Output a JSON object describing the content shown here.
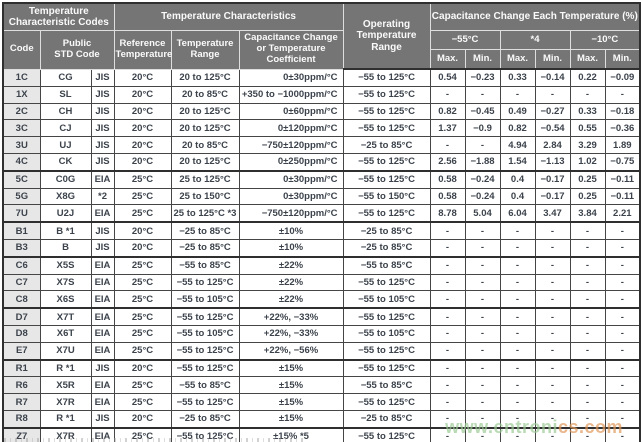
{
  "colors": {
    "header_bg": "#757575",
    "code_column_bg": "#e7e7e7",
    "grid_border": "#454545",
    "outer_border": "#2f2f2f",
    "watermark_green": "#9ccb96",
    "watermark_orange": "#e1995c"
  },
  "header": {
    "group_codes": "Temperature\nCharacteristic Codes",
    "group_characteristics": "Temperature Characteristics",
    "operating": "Operating\nTemperature\nRange",
    "group_cap_change": "Capacitance Change Each Temperature (%)",
    "col_code": "Code",
    "col_public": "Public\nSTD Code",
    "col_ref": "Reference\nTemperature",
    "col_range": "Temperature\nRange",
    "col_coeff": "Capacitance Change\nor Temperature\nCoefficient",
    "temp_minus55": "−55°C",
    "temp_star4": "*4",
    "temp_minus10": "−10°C",
    "max": "Max.",
    "min": "Min."
  },
  "watermark": {
    "text_green": "www.cntroni",
    "text_orange": "cs.com"
  },
  "table": {
    "rows": [
      {
        "code": "1C",
        "public": "CG",
        "std": "JIS",
        "ref": "20°C",
        "range": "20 to 125°C",
        "coeff": "0±30ppm/°C",
        "op": "−55 to 125°C",
        "vals": [
          "0.54",
          "−0.23",
          "0.33",
          "−0.14",
          "0.22",
          "−0.09"
        ]
      },
      {
        "code": "1X",
        "public": "SL",
        "std": "JIS",
        "ref": "20°C",
        "range": "20 to 85°C",
        "coeff": "+350 to −1000ppm/°C",
        "op": "−55 to 125°C",
        "vals": [
          "-",
          "-",
          "-",
          "-",
          "-",
          "-"
        ]
      },
      {
        "code": "2C",
        "public": "CH",
        "std": "JIS",
        "ref": "20°C",
        "range": "20 to 125°C",
        "coeff": "0±60ppm/°C",
        "op": "−55 to 125°C",
        "vals": [
          "0.82",
          "−0.45",
          "0.49",
          "−0.27",
          "0.33",
          "−0.18"
        ]
      },
      {
        "code": "3C",
        "public": "CJ",
        "std": "JIS",
        "ref": "20°C",
        "range": "20 to 125°C",
        "coeff": "0±120ppm/°C",
        "op": "−55 to 125°C",
        "vals": [
          "1.37",
          "−0.9",
          "0.82",
          "−0.54",
          "0.55",
          "−0.36"
        ]
      },
      {
        "code": "3U",
        "public": "UJ",
        "std": "JIS",
        "ref": "20°C",
        "range": "20 to 85°C",
        "coeff": "−750±120ppm/°C",
        "op": "−25 to 85°C",
        "vals": [
          "-",
          "-",
          "4.94",
          "2.84",
          "3.29",
          "1.89"
        ]
      },
      {
        "code": "4C",
        "public": "CK",
        "std": "JIS",
        "ref": "20°C",
        "range": "20 to 125°C",
        "coeff": "0±250ppm/°C",
        "op": "−55 to 125°C",
        "vals": [
          "2.56",
          "−1.88",
          "1.54",
          "−1.13",
          "1.02",
          "−0.75"
        ]
      },
      {
        "code": "5C",
        "public": "C0G",
        "std": "EIA",
        "ref": "25°C",
        "range": "25 to 125°C",
        "coeff": "0±30ppm/°C",
        "op": "−55 to 125°C",
        "group": true,
        "vals": [
          "0.58",
          "−0.24",
          "0.4",
          "−0.17",
          "0.25",
          "−0.11"
        ]
      },
      {
        "code": "5G",
        "public": "X8G",
        "std": "*2",
        "ref": "25°C",
        "range": "25 to 150°C",
        "coeff": "0±30ppm/°C",
        "op": "−55 to 150°C",
        "vals": [
          "0.58",
          "−0.24",
          "0.4",
          "−0.17",
          "0.25",
          "−0.11"
        ]
      },
      {
        "code": "7U",
        "public": "U2J",
        "std": "EIA",
        "ref": "25°C",
        "range": "25 to 125°C *3",
        "coeff": "−750±120ppm/°C",
        "op": "−55 to 125°C",
        "vals": [
          "8.78",
          "5.04",
          "6.04",
          "3.47",
          "3.84",
          "2.21"
        ]
      },
      {
        "code": "B1",
        "public": "B *1",
        "std": "JIS",
        "ref": "20°C",
        "range": "−25 to 85°C",
        "coeff": "±10%",
        "op": "−25 to 85°C",
        "group": true,
        "vals": [
          "-",
          "-",
          "-",
          "-",
          "-",
          "-"
        ]
      },
      {
        "code": "B3",
        "public": "B",
        "std": "JIS",
        "ref": "20°C",
        "range": "−25 to 85°C",
        "coeff": "±10%",
        "op": "−25 to 85°C",
        "vals": [
          "-",
          "-",
          "-",
          "-",
          "-",
          "-"
        ]
      },
      {
        "code": "C6",
        "public": "X5S",
        "std": "EIA",
        "ref": "25°C",
        "range": "−55 to 85°C",
        "coeff": "±22%",
        "op": "−55 to 85°C",
        "group": true,
        "vals": [
          "-",
          "-",
          "-",
          "-",
          "-",
          "-"
        ]
      },
      {
        "code": "C7",
        "public": "X7S",
        "std": "EIA",
        "ref": "25°C",
        "range": "−55 to 125°C",
        "coeff": "±22%",
        "op": "−55 to 125°C",
        "vals": [
          "-",
          "-",
          "-",
          "-",
          "-",
          "-"
        ]
      },
      {
        "code": "C8",
        "public": "X6S",
        "std": "EIA",
        "ref": "25°C",
        "range": "−55 to 105°C",
        "coeff": "±22%",
        "op": "−55 to 105°C",
        "vals": [
          "-",
          "-",
          "-",
          "-",
          "-",
          "-"
        ]
      },
      {
        "code": "D7",
        "public": "X7T",
        "std": "EIA",
        "ref": "25°C",
        "range": "−55 to 125°C",
        "coeff": "+22%, −33%",
        "op": "−55 to 125°C",
        "group": true,
        "vals": [
          "-",
          "-",
          "-",
          "-",
          "-",
          "-"
        ]
      },
      {
        "code": "D8",
        "public": "X6T",
        "std": "EIA",
        "ref": "25°C",
        "range": "−55 to 105°C",
        "coeff": "+22%, −33%",
        "op": "−55 to 105°C",
        "vals": [
          "-",
          "-",
          "-",
          "-",
          "-",
          "-"
        ]
      },
      {
        "code": "E7",
        "public": "X7U",
        "std": "EIA",
        "ref": "25°C",
        "range": "−55 to 125°C",
        "coeff": "+22%, −56%",
        "op": "−55 to 125°C",
        "vals": [
          "-",
          "-",
          "-",
          "-",
          "-",
          "-"
        ]
      },
      {
        "code": "R1",
        "public": "R *1",
        "std": "JIS",
        "ref": "20°C",
        "range": "−55 to 125°C",
        "coeff": "±15%",
        "op": "−55 to 125°C",
        "group": true,
        "vals": [
          "-",
          "-",
          "-",
          "-",
          "-",
          "-"
        ]
      },
      {
        "code": "R6",
        "public": "X5R",
        "std": "EIA",
        "ref": "25°C",
        "range": "−55 to 85°C",
        "coeff": "±15%",
        "op": "−55 to 85°C",
        "vals": [
          "-",
          "-",
          "-",
          "-",
          "-",
          "-"
        ]
      },
      {
        "code": "R7",
        "public": "X7R",
        "std": "EIA",
        "ref": "25°C",
        "range": "−55 to 125°C",
        "coeff": "±15%",
        "op": "−55 to 125°C",
        "vals": [
          "-",
          "-",
          "-",
          "-",
          "-",
          "-"
        ]
      },
      {
        "code": "R8",
        "public": "R *1",
        "std": "JIS",
        "ref": "20°C",
        "range": "−25 to 85°C",
        "coeff": "±15%",
        "op": "−25 to 85°C",
        "vals": [
          "-",
          "-",
          "-",
          "-",
          "-",
          "-"
        ]
      },
      {
        "code": "Z7",
        "public": "X7R",
        "std": "EIA",
        "ref": "25°C",
        "range": "−55 to 125°C",
        "coeff": "±15% *5",
        "op": "−55 to 125°C",
        "group": true,
        "vals": [
          "-",
          "-",
          "-",
          "-",
          "-",
          "-"
        ]
      }
    ]
  }
}
